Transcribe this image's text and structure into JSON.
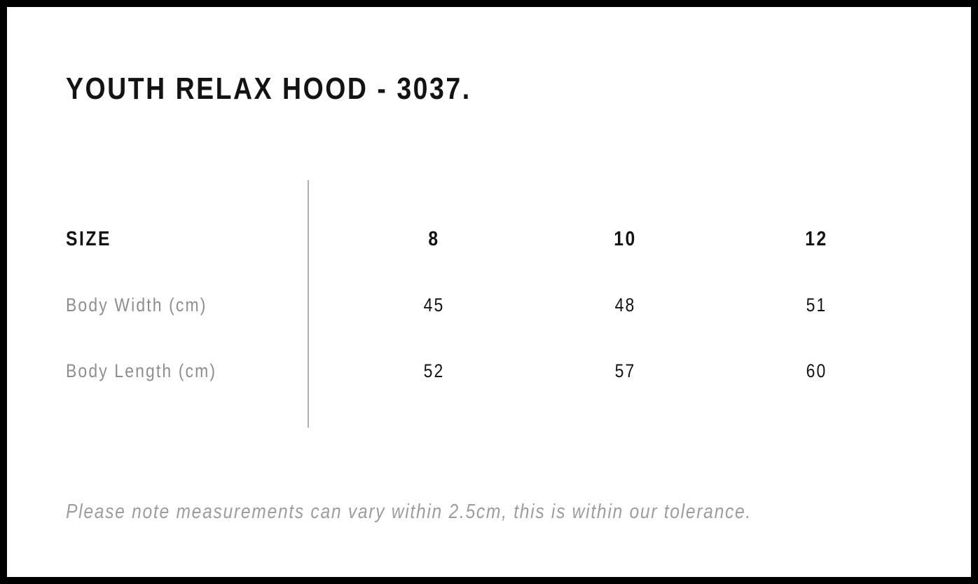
{
  "page": {
    "title": "YOUTH RELAX HOOD - 3037."
  },
  "size_chart": {
    "header_label": "SIZE",
    "sizes": [
      "8",
      "10",
      "12"
    ],
    "rows": [
      {
        "label": "Body Width (cm)",
        "values": [
          "45",
          "48",
          "51"
        ]
      },
      {
        "label": "Body Length (cm)",
        "values": [
          "52",
          "57",
          "60"
        ]
      }
    ],
    "note": "Please note measurements can vary within 2.5cm, this is within our tolerance."
  },
  "colors": {
    "ink": "#131313",
    "gray-label": "#8e8e8e",
    "gray-note": "#9d9d9d",
    "divider": "#b0b0b0",
    "frame": "#000000",
    "paper": "#ffffff"
  }
}
